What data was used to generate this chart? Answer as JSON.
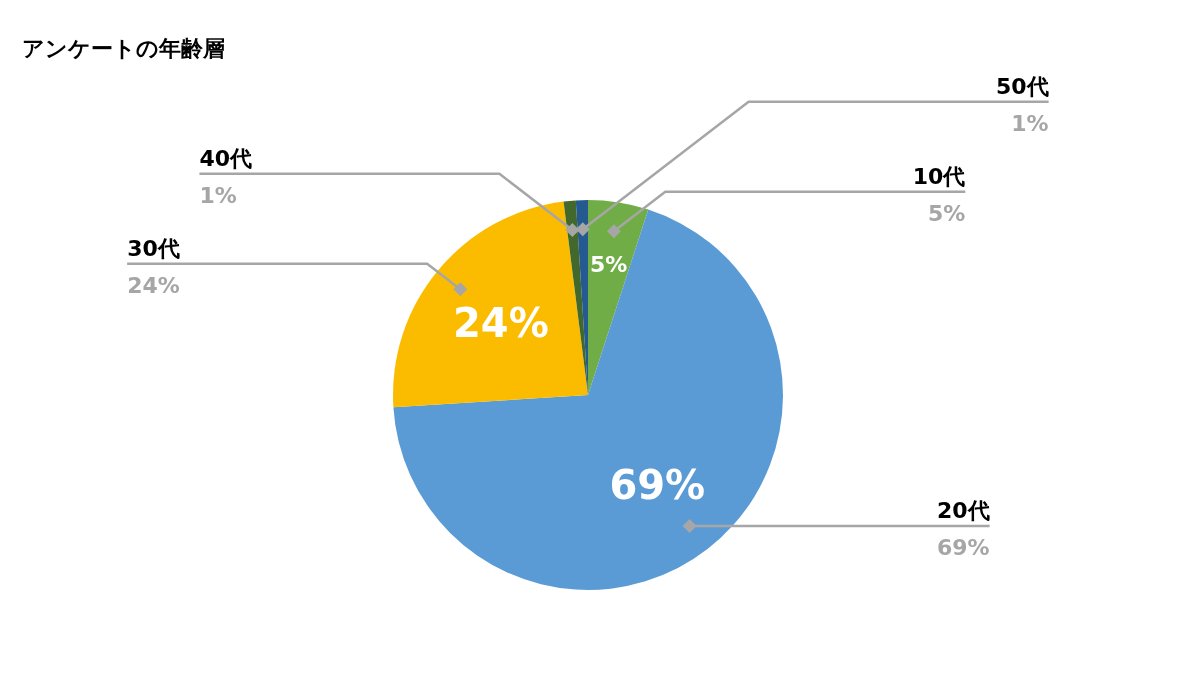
{
  "chart_data": {
    "type": "pie",
    "title": "アンケートの年齢層",
    "categories": [
      "10代",
      "20代",
      "30代",
      "40代",
      "50代"
    ],
    "values": [
      5,
      69,
      24,
      1,
      1
    ],
    "colors": [
      "#70ad47",
      "#5b9bd5",
      "#fbbc00",
      "#43682b",
      "#245a8f"
    ],
    "value_labels": [
      "5%",
      "69%",
      "24%",
      "1%",
      "1%"
    ]
  }
}
